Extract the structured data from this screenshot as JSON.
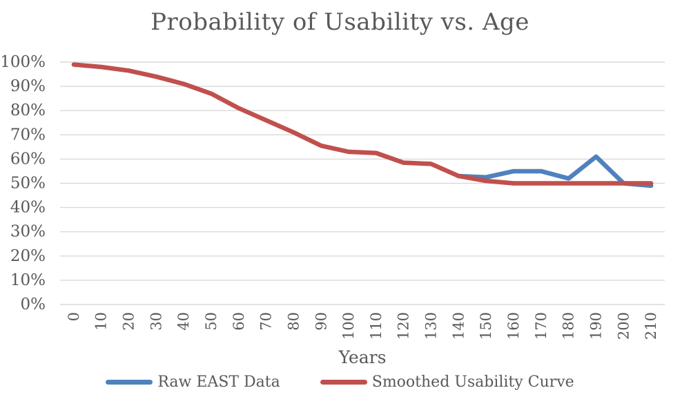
{
  "title": "Probability of Usability vs. Age",
  "x_axis": {
    "label": "Years",
    "ticks": [
      "0",
      "10",
      "20",
      "30",
      "40",
      "50",
      "60",
      "70",
      "80",
      "90",
      "100",
      "110",
      "120",
      "130",
      "140",
      "150",
      "160",
      "170",
      "180",
      "190",
      "200",
      "210"
    ]
  },
  "y_axis": {
    "ticks": [
      "0%",
      "10%",
      "20%",
      "30%",
      "40%",
      "50%",
      "60%",
      "70%",
      "80%",
      "90%",
      "100%"
    ]
  },
  "legend": [
    {
      "label": "Raw EAST Data",
      "color": "#4F81BD"
    },
    {
      "label": "Smoothed Usability Curve",
      "color": "#C0504D"
    }
  ],
  "colors": {
    "text": "#595959",
    "gridline": "#D9D9D9",
    "background": "#FFFFFF"
  },
  "chart_data": {
    "type": "line",
    "title": "Probability of Usability vs. Age",
    "xlabel": "Years",
    "ylabel": "",
    "x": [
      0,
      10,
      20,
      30,
      40,
      50,
      60,
      70,
      80,
      90,
      100,
      110,
      120,
      130,
      140,
      150,
      160,
      170,
      180,
      190,
      200,
      210
    ],
    "ylim": [
      0,
      100
    ],
    "y_unit": "percent",
    "y_tick_step": 10,
    "grid": "horizontal",
    "legend_position": "bottom",
    "series": [
      {
        "name": "Raw EAST Data",
        "color": "#4F81BD",
        "values": [
          null,
          null,
          null,
          null,
          null,
          null,
          null,
          null,
          null,
          null,
          null,
          null,
          null,
          null,
          53,
          52.5,
          55,
          55,
          52,
          61,
          50,
          49
        ],
        "note": "hidden beneath smoothed curve before year 140"
      },
      {
        "name": "Smoothed Usability Curve",
        "color": "#C0504D",
        "values": [
          99,
          98,
          96.5,
          94,
          91,
          87,
          81,
          76,
          71,
          65.5,
          63,
          62.5,
          58.5,
          58,
          53,
          51,
          50,
          50,
          50,
          50,
          50,
          50
        ]
      }
    ]
  }
}
